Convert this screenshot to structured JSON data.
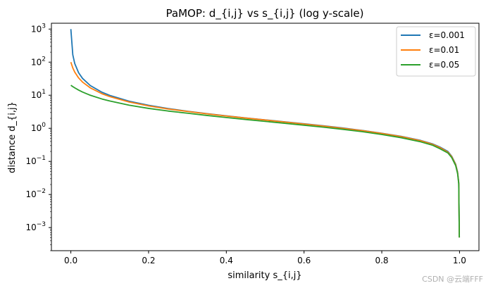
{
  "chart_data": {
    "type": "line",
    "title": "PaMOP: d_{i,j} vs s_{i,j}  (log y-scale)",
    "xlabel": "similarity s_{i,j}",
    "ylabel": "distance d_{i,j}",
    "xlim": [
      -0.05,
      1.05
    ],
    "ylim": [
      0.0002,
      1500
    ],
    "yscale": "log",
    "grid": false,
    "legend_position": "top-right",
    "x_ticks": [
      {
        "value": 0.0,
        "label": "0.0"
      },
      {
        "value": 0.2,
        "label": "0.2"
      },
      {
        "value": 0.4,
        "label": "0.4"
      },
      {
        "value": 0.6,
        "label": "0.6"
      },
      {
        "value": 0.8,
        "label": "0.8"
      },
      {
        "value": 1.0,
        "label": "1.0"
      }
    ],
    "y_ticks": [
      {
        "value": 0.001,
        "base": "10",
        "exp": "−3"
      },
      {
        "value": 0.01,
        "base": "10",
        "exp": "−2"
      },
      {
        "value": 0.1,
        "base": "10",
        "exp": "−1"
      },
      {
        "value": 1,
        "base": "10",
        "exp": "0"
      },
      {
        "value": 10,
        "base": "10",
        "exp": "1"
      },
      {
        "value": 100,
        "base": "10",
        "exp": "2"
      },
      {
        "value": 1000,
        "base": "10",
        "exp": "3"
      }
    ],
    "series": [
      {
        "name": "ε=0.001",
        "color": "#1f77b4",
        "x": [
          0.0,
          0.005,
          0.01,
          0.02,
          0.03,
          0.05,
          0.08,
          0.1,
          0.15,
          0.2,
          0.25,
          0.3,
          0.35,
          0.4,
          0.45,
          0.5,
          0.55,
          0.6,
          0.65,
          0.7,
          0.75,
          0.8,
          0.85,
          0.9,
          0.93,
          0.95,
          0.97,
          0.98,
          0.99,
          0.995,
          0.998,
          0.9995
        ],
        "y": [
          1000,
          167,
          90.9,
          47.6,
          32.3,
          19.6,
          12.3,
          9.9,
          6.6,
          4.97,
          3.96,
          3.28,
          2.77,
          2.38,
          2.06,
          1.8,
          1.57,
          1.37,
          1.19,
          1.02,
          0.86,
          0.71,
          0.57,
          0.43,
          0.34,
          0.27,
          0.2,
          0.143,
          0.083,
          0.048,
          0.023,
          0.0005
        ]
      },
      {
        "name": "ε=0.01",
        "color": "#ff7f0e",
        "x": [
          0.0,
          0.005,
          0.01,
          0.02,
          0.03,
          0.05,
          0.08,
          0.1,
          0.15,
          0.2,
          0.25,
          0.3,
          0.35,
          0.4,
          0.45,
          0.5,
          0.55,
          0.6,
          0.65,
          0.7,
          0.75,
          0.8,
          0.85,
          0.9,
          0.93,
          0.95,
          0.97,
          0.98,
          0.99,
          0.995,
          0.998,
          0.9995
        ],
        "y": [
          100,
          66.7,
          50,
          33.3,
          25,
          16.7,
          11.1,
          9.1,
          6.25,
          4.76,
          3.85,
          3.23,
          2.74,
          2.35,
          2.04,
          1.78,
          1.55,
          1.35,
          1.17,
          1.0,
          0.85,
          0.7,
          0.56,
          0.42,
          0.33,
          0.26,
          0.19,
          0.138,
          0.08,
          0.046,
          0.022,
          0.0005
        ]
      },
      {
        "name": "ε=0.05",
        "color": "#2ca02c",
        "x": [
          0.0,
          0.005,
          0.01,
          0.02,
          0.03,
          0.05,
          0.08,
          0.1,
          0.15,
          0.2,
          0.25,
          0.3,
          0.35,
          0.4,
          0.45,
          0.5,
          0.55,
          0.6,
          0.65,
          0.7,
          0.75,
          0.8,
          0.85,
          0.9,
          0.93,
          0.95,
          0.97,
          0.98,
          0.99,
          0.995,
          0.998,
          0.9995
        ],
        "y": [
          20,
          18.2,
          16.7,
          14.3,
          12.5,
          10,
          7.7,
          6.7,
          5.0,
          4.0,
          3.33,
          2.86,
          2.45,
          2.12,
          1.85,
          1.62,
          1.42,
          1.24,
          1.08,
          0.93,
          0.79,
          0.65,
          0.52,
          0.39,
          0.31,
          0.24,
          0.18,
          0.13,
          0.075,
          0.043,
          0.021,
          0.0005
        ]
      }
    ]
  },
  "watermark": "CSDN @云端FFF"
}
